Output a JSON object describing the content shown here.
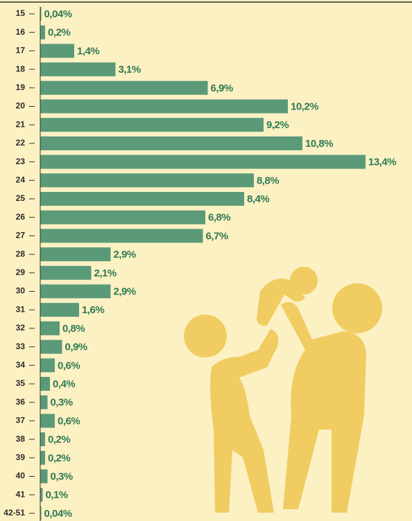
{
  "chart_data": {
    "type": "bar",
    "orientation": "horizontal",
    "color": "#5b9a78",
    "categories": [
      "15",
      "16",
      "17",
      "18",
      "19",
      "20",
      "21",
      "22",
      "23",
      "24",
      "25",
      "26",
      "27",
      "28",
      "29",
      "30",
      "31",
      "32",
      "33",
      "34",
      "35",
      "36",
      "37",
      "38",
      "39",
      "40",
      "41",
      "42-51"
    ],
    "values": [
      0.04,
      0.2,
      1.4,
      3.1,
      6.9,
      10.2,
      9.2,
      10.8,
      13.4,
      8.8,
      8.4,
      6.8,
      6.7,
      2.9,
      2.1,
      2.9,
      1.6,
      0.8,
      0.9,
      0.6,
      0.4,
      0.3,
      0.6,
      0.2,
      0.2,
      0.3,
      0.1,
      0.04
    ],
    "value_labels": [
      "0,04%",
      "0,2%",
      "1,4%",
      "3,1%",
      "6,9%",
      "10,2%",
      "9,2%",
      "10,8%",
      "13,4%",
      "8,8%",
      "8,4%",
      "6,8%",
      "6,7%",
      "2,9%",
      "2,1%",
      "2,9%",
      "1,6%",
      "0,8%",
      "0,9%",
      "0,6%",
      "0,4%",
      "0,3%",
      "0,6%",
      "0,2%",
      "0,2%",
      "0,3%",
      "0,1%",
      "0,04%"
    ]
  }
}
